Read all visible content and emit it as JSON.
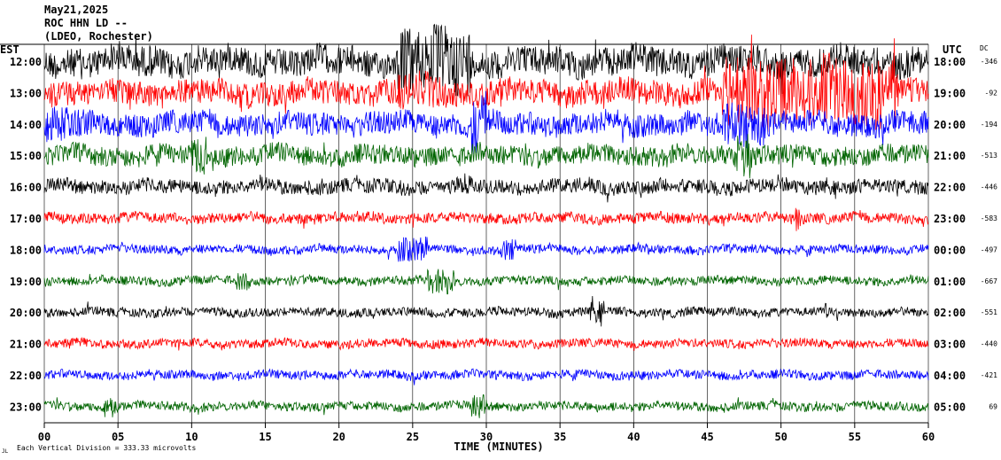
{
  "header": {
    "date": "May21,2025",
    "station": "ROC HHN LD --",
    "network": "(LDEO, Rochester)",
    "left_zone": "EST",
    "right_zone": "UTC",
    "dc_label": "DC"
  },
  "footer": {
    "scale_note": "Each Vertical Division =  333.33 microvolts",
    "corner_mark": "JL"
  },
  "chart_data": {
    "type": "line",
    "xlabel": "TIME (MINUTES)",
    "x_ticks": [
      "00",
      "05",
      "10",
      "15",
      "20",
      "25",
      "30",
      "35",
      "40",
      "45",
      "50",
      "55",
      "60"
    ],
    "xlim": [
      0,
      60
    ],
    "grid": "vertical",
    "series_colors": [
      "#000000",
      "#ff0000",
      "#0000ff",
      "#006400"
    ],
    "rows": [
      {
        "est": "12:00",
        "utc": "18:00",
        "dc": "-346",
        "color": "#000000",
        "amp": 16,
        "bursts": [
          [
            24,
            29,
            38
          ],
          [
            5,
            8,
            18
          ]
        ]
      },
      {
        "est": "13:00",
        "utc": "19:00",
        "dc": "-92",
        "color": "#ff0000",
        "amp": 14,
        "bursts": [
          [
            46,
            58,
            40
          ],
          [
            24,
            27,
            20
          ]
        ]
      },
      {
        "est": "14:00",
        "utc": "20:00",
        "dc": "-194",
        "color": "#0000ff",
        "amp": 13,
        "bursts": [
          [
            0,
            3,
            20
          ],
          [
            29,
            30,
            35
          ],
          [
            46,
            49,
            25
          ]
        ]
      },
      {
        "est": "15:00",
        "utc": "21:00",
        "dc": "-513",
        "color": "#006400",
        "amp": 11,
        "bursts": [
          [
            47,
            48,
            35
          ],
          [
            10,
            11,
            22
          ]
        ]
      },
      {
        "est": "16:00",
        "utc": "22:00",
        "dc": "-446",
        "color": "#000000",
        "amp": 8,
        "bursts": [
          [
            28,
            29,
            12
          ]
        ]
      },
      {
        "est": "17:00",
        "utc": "23:00",
        "dc": "-583",
        "color": "#ff0000",
        "amp": 6,
        "bursts": [
          [
            51,
            51.5,
            14
          ]
        ]
      },
      {
        "est": "18:00",
        "utc": "00:00",
        "dc": "-497",
        "color": "#0000ff",
        "amp": 5,
        "bursts": [
          [
            24,
            26,
            14
          ],
          [
            31,
            32,
            12
          ]
        ]
      },
      {
        "est": "19:00",
        "utc": "01:00",
        "dc": "-667",
        "color": "#006400",
        "amp": 5,
        "bursts": [
          [
            26,
            28,
            14
          ],
          [
            13,
            14,
            10
          ]
        ]
      },
      {
        "est": "20:00",
        "utc": "02:00",
        "dc": "-551",
        "color": "#000000",
        "amp": 5,
        "bursts": [
          [
            37,
            38,
            12
          ],
          [
            53,
            54,
            10
          ]
        ]
      },
      {
        "est": "21:00",
        "utc": "03:00",
        "dc": "-440",
        "color": "#ff0000",
        "amp": 5,
        "bursts": []
      },
      {
        "est": "22:00",
        "utc": "04:00",
        "dc": "-421",
        "color": "#0000ff",
        "amp": 5,
        "bursts": []
      },
      {
        "est": "23:00",
        "utc": "05:00",
        "dc": "69",
        "color": "#006400",
        "amp": 5,
        "bursts": [
          [
            4,
            5,
            12
          ],
          [
            29,
            30,
            14
          ]
        ]
      }
    ]
  }
}
